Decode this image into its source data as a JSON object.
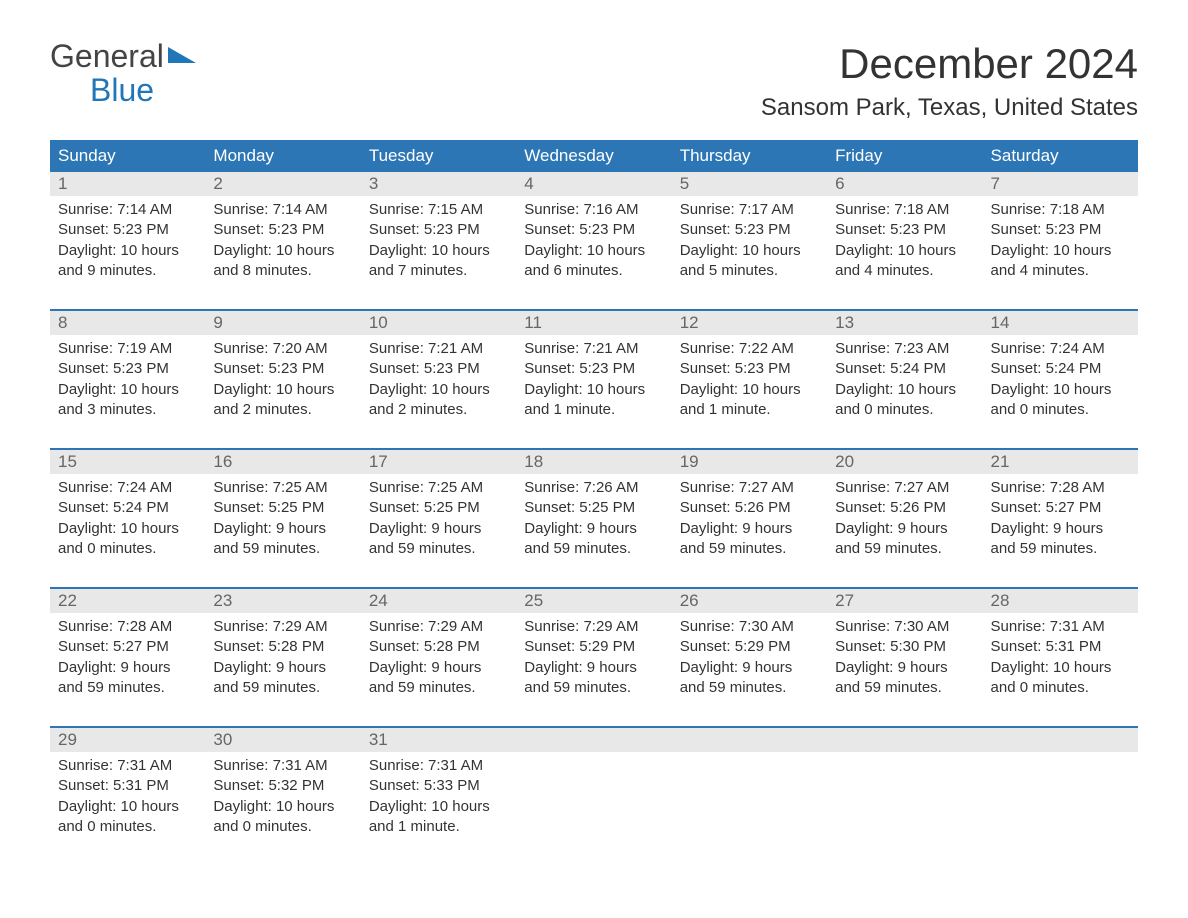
{
  "logo": {
    "line1": "General",
    "line2": "Blue"
  },
  "title": "December 2024",
  "location": "Sansom Park, Texas, United States",
  "colors": {
    "header_bg": "#2d76b5",
    "daynum_bg": "#e8e8e8",
    "logo_blue": "#2176b8"
  },
  "day_headers": [
    "Sunday",
    "Monday",
    "Tuesday",
    "Wednesday",
    "Thursday",
    "Friday",
    "Saturday"
  ],
  "weeks": [
    [
      {
        "n": "1",
        "sr": "Sunrise: 7:14 AM",
        "ss": "Sunset: 5:23 PM",
        "d1": "Daylight: 10 hours",
        "d2": "and 9 minutes."
      },
      {
        "n": "2",
        "sr": "Sunrise: 7:14 AM",
        "ss": "Sunset: 5:23 PM",
        "d1": "Daylight: 10 hours",
        "d2": "and 8 minutes."
      },
      {
        "n": "3",
        "sr": "Sunrise: 7:15 AM",
        "ss": "Sunset: 5:23 PM",
        "d1": "Daylight: 10 hours",
        "d2": "and 7 minutes."
      },
      {
        "n": "4",
        "sr": "Sunrise: 7:16 AM",
        "ss": "Sunset: 5:23 PM",
        "d1": "Daylight: 10 hours",
        "d2": "and 6 minutes."
      },
      {
        "n": "5",
        "sr": "Sunrise: 7:17 AM",
        "ss": "Sunset: 5:23 PM",
        "d1": "Daylight: 10 hours",
        "d2": "and 5 minutes."
      },
      {
        "n": "6",
        "sr": "Sunrise: 7:18 AM",
        "ss": "Sunset: 5:23 PM",
        "d1": "Daylight: 10 hours",
        "d2": "and 4 minutes."
      },
      {
        "n": "7",
        "sr": "Sunrise: 7:18 AM",
        "ss": "Sunset: 5:23 PM",
        "d1": "Daylight: 10 hours",
        "d2": "and 4 minutes."
      }
    ],
    [
      {
        "n": "8",
        "sr": "Sunrise: 7:19 AM",
        "ss": "Sunset: 5:23 PM",
        "d1": "Daylight: 10 hours",
        "d2": "and 3 minutes."
      },
      {
        "n": "9",
        "sr": "Sunrise: 7:20 AM",
        "ss": "Sunset: 5:23 PM",
        "d1": "Daylight: 10 hours",
        "d2": "and 2 minutes."
      },
      {
        "n": "10",
        "sr": "Sunrise: 7:21 AM",
        "ss": "Sunset: 5:23 PM",
        "d1": "Daylight: 10 hours",
        "d2": "and 2 minutes."
      },
      {
        "n": "11",
        "sr": "Sunrise: 7:21 AM",
        "ss": "Sunset: 5:23 PM",
        "d1": "Daylight: 10 hours",
        "d2": "and 1 minute."
      },
      {
        "n": "12",
        "sr": "Sunrise: 7:22 AM",
        "ss": "Sunset: 5:23 PM",
        "d1": "Daylight: 10 hours",
        "d2": "and 1 minute."
      },
      {
        "n": "13",
        "sr": "Sunrise: 7:23 AM",
        "ss": "Sunset: 5:24 PM",
        "d1": "Daylight: 10 hours",
        "d2": "and 0 minutes."
      },
      {
        "n": "14",
        "sr": "Sunrise: 7:24 AM",
        "ss": "Sunset: 5:24 PM",
        "d1": "Daylight: 10 hours",
        "d2": "and 0 minutes."
      }
    ],
    [
      {
        "n": "15",
        "sr": "Sunrise: 7:24 AM",
        "ss": "Sunset: 5:24 PM",
        "d1": "Daylight: 10 hours",
        "d2": "and 0 minutes."
      },
      {
        "n": "16",
        "sr": "Sunrise: 7:25 AM",
        "ss": "Sunset: 5:25 PM",
        "d1": "Daylight: 9 hours",
        "d2": "and 59 minutes."
      },
      {
        "n": "17",
        "sr": "Sunrise: 7:25 AM",
        "ss": "Sunset: 5:25 PM",
        "d1": "Daylight: 9 hours",
        "d2": "and 59 minutes."
      },
      {
        "n": "18",
        "sr": "Sunrise: 7:26 AM",
        "ss": "Sunset: 5:25 PM",
        "d1": "Daylight: 9 hours",
        "d2": "and 59 minutes."
      },
      {
        "n": "19",
        "sr": "Sunrise: 7:27 AM",
        "ss": "Sunset: 5:26 PM",
        "d1": "Daylight: 9 hours",
        "d2": "and 59 minutes."
      },
      {
        "n": "20",
        "sr": "Sunrise: 7:27 AM",
        "ss": "Sunset: 5:26 PM",
        "d1": "Daylight: 9 hours",
        "d2": "and 59 minutes."
      },
      {
        "n": "21",
        "sr": "Sunrise: 7:28 AM",
        "ss": "Sunset: 5:27 PM",
        "d1": "Daylight: 9 hours",
        "d2": "and 59 minutes."
      }
    ],
    [
      {
        "n": "22",
        "sr": "Sunrise: 7:28 AM",
        "ss": "Sunset: 5:27 PM",
        "d1": "Daylight: 9 hours",
        "d2": "and 59 minutes."
      },
      {
        "n": "23",
        "sr": "Sunrise: 7:29 AM",
        "ss": "Sunset: 5:28 PM",
        "d1": "Daylight: 9 hours",
        "d2": "and 59 minutes."
      },
      {
        "n": "24",
        "sr": "Sunrise: 7:29 AM",
        "ss": "Sunset: 5:28 PM",
        "d1": "Daylight: 9 hours",
        "d2": "and 59 minutes."
      },
      {
        "n": "25",
        "sr": "Sunrise: 7:29 AM",
        "ss": "Sunset: 5:29 PM",
        "d1": "Daylight: 9 hours",
        "d2": "and 59 minutes."
      },
      {
        "n": "26",
        "sr": "Sunrise: 7:30 AM",
        "ss": "Sunset: 5:29 PM",
        "d1": "Daylight: 9 hours",
        "d2": "and 59 minutes."
      },
      {
        "n": "27",
        "sr": "Sunrise: 7:30 AM",
        "ss": "Sunset: 5:30 PM",
        "d1": "Daylight: 9 hours",
        "d2": "and 59 minutes."
      },
      {
        "n": "28",
        "sr": "Sunrise: 7:31 AM",
        "ss": "Sunset: 5:31 PM",
        "d1": "Daylight: 10 hours",
        "d2": "and 0 minutes."
      }
    ],
    [
      {
        "n": "29",
        "sr": "Sunrise: 7:31 AM",
        "ss": "Sunset: 5:31 PM",
        "d1": "Daylight: 10 hours",
        "d2": "and 0 minutes."
      },
      {
        "n": "30",
        "sr": "Sunrise: 7:31 AM",
        "ss": "Sunset: 5:32 PM",
        "d1": "Daylight: 10 hours",
        "d2": "and 0 minutes."
      },
      {
        "n": "31",
        "sr": "Sunrise: 7:31 AM",
        "ss": "Sunset: 5:33 PM",
        "d1": "Daylight: 10 hours",
        "d2": "and 1 minute."
      },
      null,
      null,
      null,
      null
    ]
  ]
}
